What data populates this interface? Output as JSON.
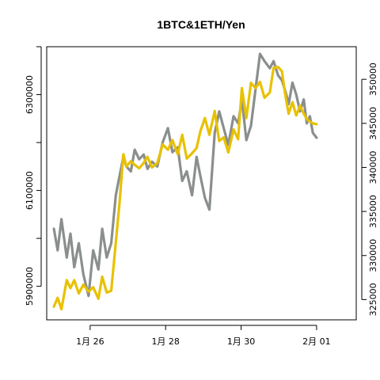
{
  "chart_data": {
    "type": "line",
    "title": "1BTC&1ETH/Yen",
    "xlabel": "",
    "ylabel": "",
    "y2label": "",
    "xlim": [
      -1.15,
      7.05
    ],
    "ylim": [
      5830000,
      6400000
    ],
    "y2lim": [
      322700,
      353700
    ],
    "x_ticks": [
      {
        "value": 0,
        "label": "1月 26"
      },
      {
        "value": 2,
        "label": "1月 28"
      },
      {
        "value": 4,
        "label": "1月 30"
      },
      {
        "value": 6,
        "label": "2月 01"
      }
    ],
    "y_ticks": [
      {
        "value": 5900000,
        "label": "5900000",
        "labeled": true
      },
      {
        "value": 6000000,
        "label": "",
        "labeled": false
      },
      {
        "value": 6100000,
        "label": "6100000",
        "labeled": true
      },
      {
        "value": 6200000,
        "label": "",
        "labeled": false
      },
      {
        "value": 6300000,
        "label": "6300000",
        "labeled": true
      },
      {
        "value": 6400000,
        "label": "",
        "labeled": false
      }
    ],
    "y2_ticks": [
      {
        "value": 325000,
        "label": "325000"
      },
      {
        "value": 330000,
        "label": "330000"
      },
      {
        "value": 335000,
        "label": "335000"
      },
      {
        "value": 340000,
        "label": "340000"
      },
      {
        "value": 345000,
        "label": "345000"
      },
      {
        "value": 350000,
        "label": "350000"
      }
    ],
    "grid": false,
    "legend": "none",
    "series": [
      {
        "axis": "left",
        "color": "#8a8f8d",
        "x": [
          -0.96,
          -0.86,
          -0.76,
          -0.62,
          -0.52,
          -0.42,
          -0.3,
          -0.18,
          -0.04,
          0.08,
          0.22,
          0.32,
          0.44,
          0.56,
          0.68,
          0.78,
          0.88,
          0.96,
          1.08,
          1.18,
          1.3,
          1.42,
          1.52,
          1.64,
          1.78,
          1.92,
          2.06,
          2.18,
          2.32,
          2.44,
          2.56,
          2.7,
          2.82,
          2.92,
          3.04,
          3.16,
          3.3,
          3.42,
          3.54,
          3.66,
          3.8,
          3.92,
          4.02,
          4.14,
          4.26,
          4.38,
          4.5,
          4.62,
          4.76,
          4.86,
          4.98,
          5.08,
          5.18,
          5.26,
          5.36,
          5.46,
          5.56,
          5.66,
          5.74,
          5.82,
          5.9,
          6.0
        ],
        "y": [
          6020000,
          5975000,
          6040000,
          5960000,
          6010000,
          5940000,
          5990000,
          5925000,
          5880000,
          5975000,
          5935000,
          6020000,
          5960000,
          5990000,
          6090000,
          6130000,
          6170000,
          6150000,
          6140000,
          6185000,
          6165000,
          6175000,
          6145000,
          6160000,
          6150000,
          6200000,
          6230000,
          6180000,
          6190000,
          6120000,
          6140000,
          6090000,
          6170000,
          6130000,
          6085000,
          6060000,
          6220000,
          6265000,
          6230000,
          6195000,
          6255000,
          6240000,
          6290000,
          6205000,
          6235000,
          6310000,
          6385000,
          6370000,
          6355000,
          6370000,
          6340000,
          6330000,
          6305000,
          6280000,
          6325000,
          6300000,
          6265000,
          6290000,
          6240000,
          6255000,
          6220000,
          6210000
        ]
      },
      {
        "axis": "right",
        "color": "#e8c100",
        "x": [
          -0.96,
          -0.86,
          -0.76,
          -0.62,
          -0.52,
          -0.42,
          -0.3,
          -0.18,
          -0.04,
          0.08,
          0.22,
          0.32,
          0.44,
          0.56,
          0.68,
          0.78,
          0.88,
          0.96,
          1.08,
          1.18,
          1.3,
          1.42,
          1.52,
          1.64,
          1.78,
          1.92,
          2.06,
          2.18,
          2.32,
          2.44,
          2.56,
          2.7,
          2.82,
          2.92,
          3.04,
          3.16,
          3.3,
          3.42,
          3.54,
          3.66,
          3.8,
          3.92,
          4.02,
          4.14,
          4.26,
          4.38,
          4.5,
          4.62,
          4.76,
          4.86,
          4.98,
          5.08,
          5.18,
          5.26,
          5.36,
          5.46,
          5.56,
          5.66,
          5.74,
          5.82,
          5.9,
          6.0
        ],
        "y": [
          324200,
          325200,
          323900,
          327200,
          326300,
          327200,
          325700,
          326700,
          325900,
          326400,
          325100,
          327600,
          325800,
          326000,
          331500,
          336000,
          341500,
          340100,
          340700,
          340300,
          339900,
          340500,
          341200,
          340000,
          340500,
          342600,
          342000,
          343100,
          341500,
          343700,
          341000,
          341600,
          342200,
          344100,
          345600,
          343700,
          346400,
          343000,
          343400,
          341700,
          344300,
          343200,
          349000,
          345600,
          349600,
          349000,
          349700,
          347900,
          348500,
          351300,
          351400,
          350900,
          348000,
          346100,
          347400,
          345900,
          347000,
          346100,
          345500,
          345200,
          345000,
          344900
        ]
      }
    ]
  }
}
